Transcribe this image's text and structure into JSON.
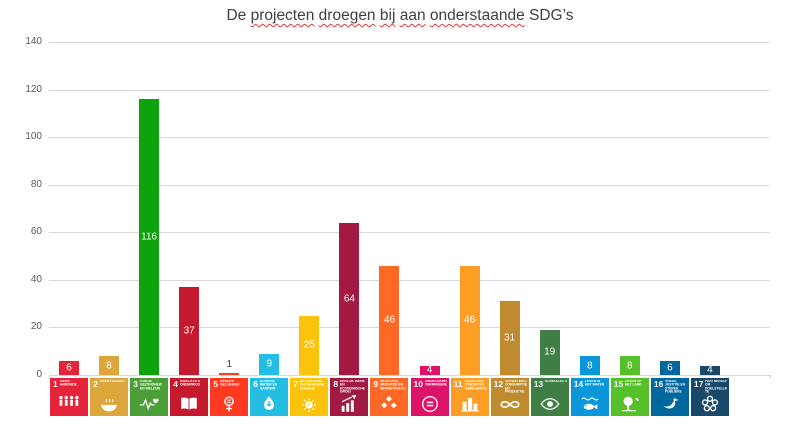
{
  "title": {
    "text": "De projecten droegen bij aan onderstaande SDG’s",
    "words": [
      {
        "text": "De",
        "spellcheck_underline": false
      },
      {
        "text": "projecten",
        "spellcheck_underline": true
      },
      {
        "text": "droegen",
        "spellcheck_underline": true
      },
      {
        "text": "bij",
        "spellcheck_underline": true
      },
      {
        "text": "aan",
        "spellcheck_underline": true
      },
      {
        "text": "onderstaande",
        "spellcheck_underline": true
      },
      {
        "text": "SDG’s",
        "spellcheck_underline": false
      }
    ]
  },
  "y_axis": {
    "ticks": [
      "140",
      "120",
      "100",
      "80",
      "60",
      "40",
      "20",
      "0"
    ],
    "min": 0,
    "max": 140,
    "step": 20
  },
  "colors": {
    "gridline": "#D9D9D9",
    "axis_text": "#595959",
    "title_text": "#3F3F3F",
    "value_label_inside": "#FFFFFF",
    "value_label_outside": "#404040",
    "spellcheck_underline": "#E03B3B",
    "background": "#FFFFFF"
  },
  "chart_data": {
    "type": "bar",
    "title": "De projecten droegen bij aan onderstaande SDG’s",
    "xlabel": "",
    "ylabel": "",
    "ylim": [
      0,
      140
    ],
    "grid": true,
    "legend": false,
    "data_labels": true,
    "categories": [
      "1 GEEN ARMOEDE",
      "2 GEEN HONGER",
      "3 GOEDE GEZONDHEID EN WELZIJN",
      "4 KWALITEITSONDERWIJS",
      "5 GENDERGELIJKHEID",
      "6 SCHOON WATER EN SANITAIR",
      "7 BETAALBARE EN DUURZAME ENERGIE",
      "8 EERLIJK WERK EN ECONOMISCHE GROEI",
      "9 INDUSTRIE, INNOVATIE EN INFRASTRUCTUUR",
      "10 ONGELIJKHEID VERMINDEREN",
      "11 DUURZAME STEDEN EN GEMEENSCHAPPEN",
      "12 VERANTWOORDE CONSUMPTIE EN PRODUCTIE",
      "13 KLIMAATACTIE",
      "14 LEVEN IN HET WATER",
      "15 LEVEN OP HET LAND",
      "16 VREDE, JUSTITIE EN STERKE PUBLIEKE DIENSTEN",
      "17 PARTNERSCHAP OM DOELSTELLINGEN TE BEREIKEN"
    ],
    "values": [
      6,
      8,
      116,
      37,
      1,
      9,
      25,
      64,
      46,
      4,
      46,
      31,
      19,
      8,
      8,
      6,
      4
    ],
    "sdgs": [
      {
        "num": "1",
        "label": "GEEN ARMOEDE",
        "value": 6,
        "bar_color": "#E5243B",
        "tile_color": "#E5243B",
        "icon": "people-icon",
        "label_outside": false
      },
      {
        "num": "2",
        "label": "GEEN HONGER",
        "value": 8,
        "bar_color": "#DDA63A",
        "tile_color": "#DDA63A",
        "icon": "bowl-icon",
        "label_outside": false
      },
      {
        "num": "3",
        "label": "GOEDE GEZONDHEID EN WELZIJN",
        "value": 116,
        "bar_color": "#0CA30C",
        "tile_color": "#4C9F38",
        "icon": "heartbeat-icon",
        "label_outside": false
      },
      {
        "num": "4",
        "label": "KWALITEITS ONDERWIJS",
        "value": 37,
        "bar_color": "#C5192D",
        "tile_color": "#C5192D",
        "icon": "book-icon",
        "label_outside": false
      },
      {
        "num": "5",
        "label": "GENDER GELIJKHEID",
        "value": 1,
        "bar_color": "#FF3A21",
        "tile_color": "#FF3A21",
        "icon": "gender-equality-icon",
        "label_outside": true
      },
      {
        "num": "6",
        "label": "SCHOON WATER EN SANITAIR",
        "value": 9,
        "bar_color": "#26BDE2",
        "tile_color": "#26BDE2",
        "icon": "water-drop-icon",
        "label_outside": false
      },
      {
        "num": "7",
        "label": "BETAALBARE EN DUURZAME ENERGIE",
        "value": 25,
        "bar_color": "#FCC30B",
        "tile_color": "#FCC30B",
        "icon": "sun-energy-icon",
        "label_outside": false
      },
      {
        "num": "8",
        "label": "EERLIJK WERK EN ECONOMISCHE GROEI",
        "value": 64,
        "bar_color": "#A21942",
        "tile_color": "#A21942",
        "icon": "growth-chart-icon",
        "label_outside": false
      },
      {
        "num": "9",
        "label": "INDUSTRIE, INNOVATIE EN INFRASTRUCTUUR",
        "value": 46,
        "bar_color": "#FD6925",
        "tile_color": "#FD6925",
        "icon": "cubes-icon",
        "label_outside": false
      },
      {
        "num": "10",
        "label": "ONGELIJKHEID VERMINDEREN",
        "value": 4,
        "bar_color": "#DD1367",
        "tile_color": "#DD1367",
        "icon": "equality-icon",
        "label_outside": false
      },
      {
        "num": "11",
        "label": "DUURZAME STEDEN EN GEMEENSCHAPPEN",
        "value": 46,
        "bar_color": "#FD9D24",
        "tile_color": "#FD9D24",
        "icon": "city-icon",
        "label_outside": false
      },
      {
        "num": "12",
        "label": "VERANTWOORDE CONSUMPTIE EN PRODUCTIE",
        "value": 31,
        "bar_color": "#BF8B2E",
        "tile_color": "#BF8B2E",
        "icon": "infinity-icon",
        "label_outside": false
      },
      {
        "num": "13",
        "label": "KLIMAATACTIE",
        "value": 19,
        "bar_color": "#3F7E44",
        "tile_color": "#3F7E44",
        "icon": "eye-globe-icon",
        "label_outside": false
      },
      {
        "num": "14",
        "label": "LEVEN IN HET WATER",
        "value": 8,
        "bar_color": "#0A97D9",
        "tile_color": "#0A97D9",
        "icon": "fish-icon",
        "label_outside": false
      },
      {
        "num": "15",
        "label": "LEVEN OP HET LAND",
        "value": 8,
        "bar_color": "#56C02B",
        "tile_color": "#56C02B",
        "icon": "tree-icon",
        "label_outside": false
      },
      {
        "num": "16",
        "label": "VREDE, JUSTITIE EN STERKE PUBLIEKE DIENSTEN",
        "value": 6,
        "bar_color": "#00689D",
        "tile_color": "#00689D",
        "icon": "dove-icon",
        "label_outside": false
      },
      {
        "num": "17",
        "label": "PARTNERSCHAP OM DOELSTELLINGEN TE BEREIKEN",
        "value": 4,
        "bar_color": "#19486A",
        "tile_color": "#19486A",
        "icon": "rings-icon",
        "label_outside": false
      }
    ]
  }
}
